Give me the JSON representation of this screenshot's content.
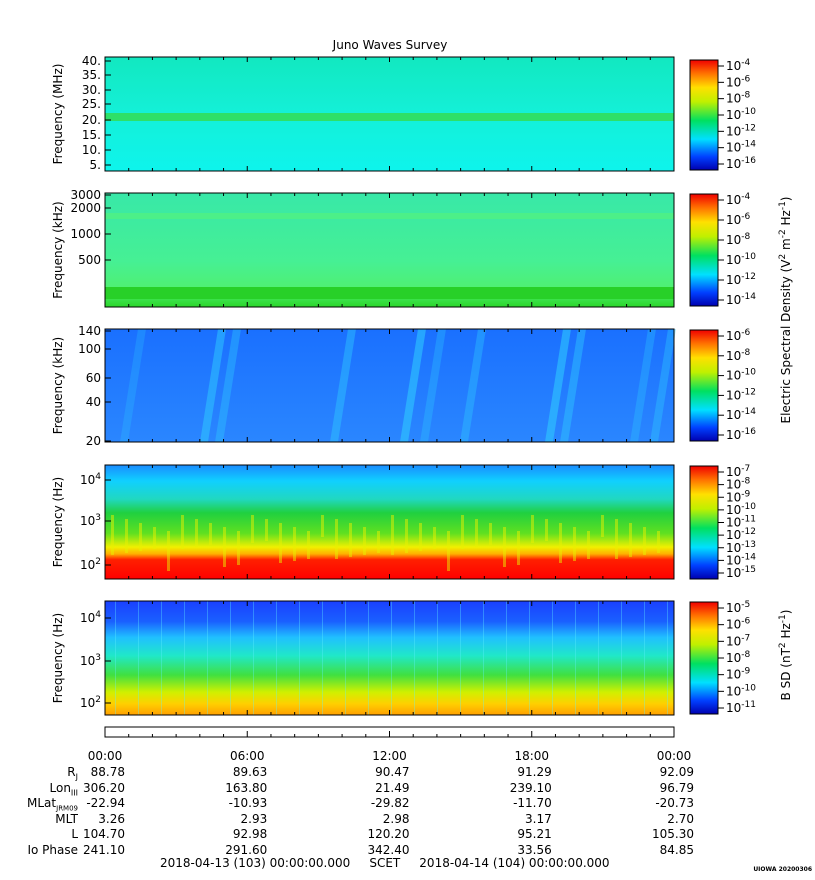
{
  "title": "Juno Waves Survey",
  "panels": [
    {
      "ylabel": "Frequency (MHz)",
      "yticks": [
        "40.",
        "35.",
        "30.",
        "25.",
        "20.",
        "15.",
        "10.",
        "5."
      ],
      "bg": "#10f2e4",
      "colorbar_ticks": [
        "10^-4",
        "10^-6",
        "10^-8",
        "10^-10",
        "10^-12",
        "10^-14",
        "10^-16"
      ]
    },
    {
      "ylabel": "Frequency (kHz)",
      "yticks": [
        "3000",
        "2000",
        "1000",
        "500"
      ],
      "bg": "#3cf09a",
      "colorbar_ticks": [
        "10^-4",
        "10^-6",
        "10^-8",
        "10^-10",
        "10^-12",
        "10^-14"
      ]
    },
    {
      "ylabel": "Frequency (kHz)",
      "yticks": [
        "140",
        "100",
        "60",
        "40",
        "20"
      ],
      "bg": "#1e7cff",
      "colorbar_ticks": [
        "10^-6",
        "10^-8",
        "10^-10",
        "10^-12",
        "10^-14",
        "10^-16"
      ]
    },
    {
      "ylabel": "Frequency (Hz)",
      "yticks": [
        "10^4",
        "10^3",
        "10^2"
      ],
      "bg": "#30e040",
      "colorbar_ticks": [
        "10^-7",
        "10^-8",
        "10^-9",
        "10^-10",
        "10^-11",
        "10^-12",
        "10^-13",
        "10^-14",
        "10^-15"
      ]
    },
    {
      "ylabel": "Frequency (Hz)",
      "yticks": [
        "10^4",
        "10^3",
        "10^2"
      ],
      "bg": "#20f0b0",
      "colorbar_ticks": [
        "10^-5",
        "10^-6",
        "10^-7",
        "10^-8",
        "10^-9",
        "10^-10",
        "10^-11"
      ]
    }
  ],
  "colorbar_label_e": "Electric Spectral Density (V^2 m^-2 Hz^-1)",
  "colorbar_label_b": "B SD (nT^2 Hz^-1)",
  "time_ticks": [
    "00:00",
    "06:00",
    "12:00",
    "18:00",
    "00:00"
  ],
  "ephemeris": [
    {
      "label": "R_J",
      "values": [
        "88.78",
        "89.63",
        "90.47",
        "91.29",
        "92.09"
      ]
    },
    {
      "label": "Lon_III",
      "values": [
        "306.20",
        "163.80",
        "21.49",
        "239.10",
        "96.79"
      ]
    },
    {
      "label": "MLat_JRM09",
      "values": [
        "-22.94",
        "-10.93",
        "-29.82",
        "-11.70",
        "-20.73"
      ]
    },
    {
      "label": "MLT",
      "values": [
        "3.26",
        "2.93",
        "2.98",
        "3.17",
        "2.70"
      ]
    },
    {
      "label": "L",
      "values": [
        "104.70",
        "92.98",
        "120.20",
        "95.21",
        "105.30"
      ]
    },
    {
      "label": "Io Phase",
      "values": [
        "241.10",
        "291.60",
        "342.40",
        "33.56",
        "84.85"
      ]
    }
  ],
  "footer": "2018-04-13 (103) 00:00:00.000     SCET     2018-04-14 (104) 00:00:00.000",
  "stamp": "UIOWA 20200306",
  "chart_data": {
    "type": "heatmap",
    "title": "Juno Waves Survey",
    "x_range": [
      "2018-04-13 00:00",
      "2018-04-14 00:00"
    ],
    "xlabel": "SCET",
    "panels": [
      {
        "quantity": "Electric Spectral Density",
        "ylabel": "Frequency (MHz)",
        "ylim": [
          3,
          41
        ]
      },
      {
        "quantity": "Electric Spectral Density",
        "ylabel": "Frequency (kHz)",
        "ylim": [
          140,
          3000
        ]
      },
      {
        "quantity": "Electric Spectral Density",
        "ylabel": "Frequency (kHz)",
        "ylim": [
          20,
          140
        ]
      },
      {
        "quantity": "Electric Spectral Density",
        "ylabel": "Frequency (Hz)",
        "ylim": [
          70,
          20000
        ]
      },
      {
        "quantity": "B SD",
        "ylabel": "Frequency (Hz)",
        "ylim": [
          50,
          25000
        ]
      }
    ]
  }
}
